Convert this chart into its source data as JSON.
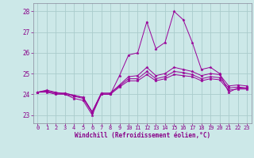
{
  "xlabel": "Windchill (Refroidissement éolien,°C)",
  "bg_color": "#cce8e8",
  "grid_color": "#aacccc",
  "line_color": "#990099",
  "x_ticks": [
    0,
    1,
    2,
    3,
    4,
    5,
    6,
    7,
    8,
    9,
    10,
    11,
    12,
    13,
    14,
    15,
    16,
    17,
    18,
    19,
    20,
    21,
    22,
    23
  ],
  "y_ticks": [
    23,
    24,
    25,
    26,
    27,
    28
  ],
  "ylim": [
    22.6,
    28.4
  ],
  "xlim": [
    -0.5,
    23.5
  ],
  "lines": [
    [
      24.1,
      24.2,
      24.1,
      24.0,
      23.8,
      23.7,
      23.0,
      24.0,
      24.0,
      24.9,
      25.9,
      26.0,
      27.5,
      26.2,
      26.5,
      28.0,
      27.6,
      26.5,
      25.2,
      25.3,
      25.0,
      24.1,
      24.3,
      24.3
    ],
    [
      24.1,
      24.15,
      24.05,
      24.05,
      23.95,
      23.85,
      23.15,
      24.05,
      24.05,
      24.45,
      24.85,
      24.9,
      25.3,
      24.9,
      25.0,
      25.3,
      25.2,
      25.1,
      24.9,
      25.0,
      24.95,
      24.4,
      24.45,
      24.4
    ],
    [
      24.1,
      24.15,
      24.05,
      24.05,
      23.95,
      23.85,
      23.15,
      24.05,
      24.05,
      24.4,
      24.75,
      24.75,
      25.1,
      24.75,
      24.85,
      25.1,
      25.05,
      24.95,
      24.75,
      24.85,
      24.8,
      24.3,
      24.35,
      24.3
    ],
    [
      24.1,
      24.1,
      24.0,
      24.0,
      23.9,
      23.8,
      23.1,
      24.0,
      24.0,
      24.35,
      24.65,
      24.65,
      24.95,
      24.65,
      24.75,
      24.95,
      24.9,
      24.85,
      24.65,
      24.75,
      24.7,
      24.2,
      24.25,
      24.25
    ]
  ]
}
